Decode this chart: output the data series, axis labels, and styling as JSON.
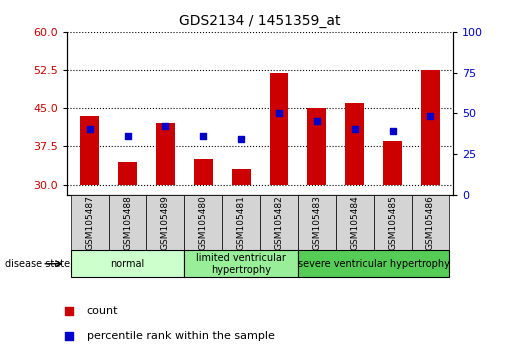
{
  "title": "GDS2134 / 1451359_at",
  "samples": [
    "GSM105487",
    "GSM105488",
    "GSM105489",
    "GSM105480",
    "GSM105481",
    "GSM105482",
    "GSM105483",
    "GSM105484",
    "GSM105485",
    "GSM105486"
  ],
  "bar_bottoms": [
    30,
    30,
    30,
    30,
    30,
    30,
    30,
    30,
    30,
    30
  ],
  "bar_tops": [
    43.5,
    34.5,
    42.0,
    35.0,
    33.0,
    52.0,
    45.0,
    46.0,
    38.5,
    52.5
  ],
  "percentile_values": [
    41.0,
    39.5,
    41.5,
    39.5,
    39.0,
    44.0,
    42.5,
    41.0,
    40.5,
    43.5
  ],
  "bar_color": "#cc0000",
  "dot_color": "#0000cc",
  "ylim_left": [
    28,
    60
  ],
  "ylim_right": [
    0,
    100
  ],
  "yticks_left": [
    30,
    37.5,
    45,
    52.5,
    60
  ],
  "yticks_right": [
    0,
    25,
    50,
    75,
    100
  ],
  "groups": [
    {
      "label": "normal",
      "start": 0,
      "end": 3,
      "color": "#ccffcc"
    },
    {
      "label": "limited ventricular\nhypertrophy",
      "start": 3,
      "end": 6,
      "color": "#99ee99"
    },
    {
      "label": "severe ventricular hypertrophy",
      "start": 6,
      "end": 10,
      "color": "#55cc55"
    }
  ],
  "disease_state_label": "disease state",
  "legend_count_label": "count",
  "legend_percentile_label": "percentile rank within the sample",
  "background_color": "#ffffff",
  "tick_label_color_left": "#cc0000",
  "tick_label_color_right": "#0000cc"
}
